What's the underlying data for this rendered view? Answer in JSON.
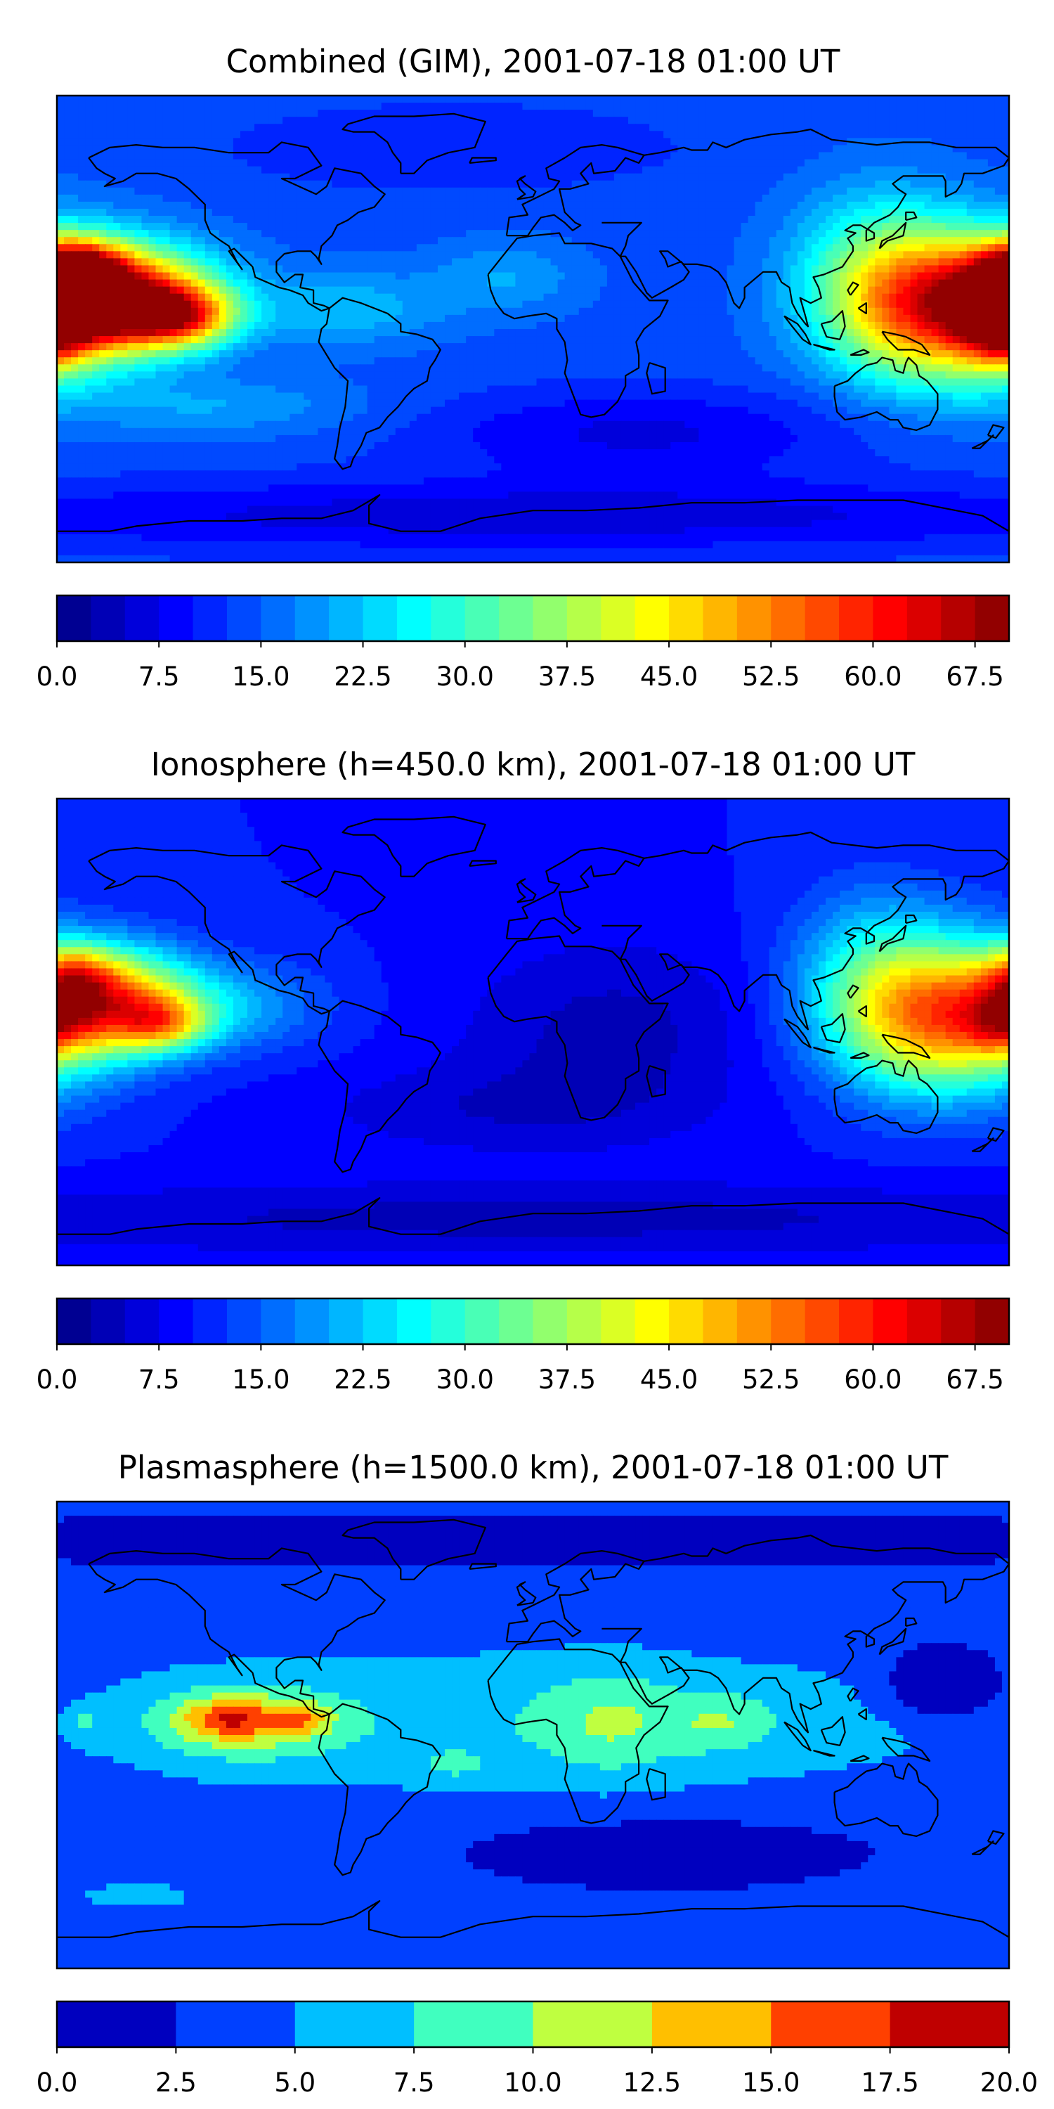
{
  "panels": [
    {
      "title": "Combined (GIM), 2001-07-18 01:00 UT",
      "colorbar": {
        "vmin": 0.0,
        "vmax": 70.0,
        "levels": 28,
        "tick_labels": [
          "0.0",
          "7.5",
          "15.0",
          "22.5",
          "30.0",
          "37.5",
          "45.0",
          "52.5",
          "60.0",
          "67.5"
        ],
        "tick_values": [
          0.0,
          7.5,
          15.0,
          22.5,
          30.0,
          37.5,
          45.0,
          52.5,
          60.0,
          67.5
        ]
      },
      "field": {
        "background": 14,
        "blobs": [
          {
            "lon": -155,
            "lat": 12,
            "amp": 44,
            "sx": 25,
            "sy": 14
          },
          {
            "lon": -173,
            "lat": 22,
            "amp": 30,
            "sx": 12,
            "sy": 8
          },
          {
            "lon": -135,
            "lat": 5,
            "amp": 32,
            "sx": 15,
            "sy": 8
          },
          {
            "lon": -175,
            "lat": 10,
            "amp": 20,
            "sx": 18,
            "sy": 14
          },
          {
            "lon": 155,
            "lat": 8,
            "amp": 42,
            "sx": 28,
            "sy": 20
          },
          {
            "lon": 178,
            "lat": 0,
            "amp": 18,
            "sx": 10,
            "sy": 10
          },
          {
            "lon": 130,
            "lat": 25,
            "amp": 12,
            "sx": 22,
            "sy": 22
          },
          {
            "lon": -70,
            "lat": 8,
            "amp": 8,
            "sx": 25,
            "sy": 10
          },
          {
            "lon": -10,
            "lat": 20,
            "amp": 6,
            "sx": 20,
            "sy": 10
          },
          {
            "lon": -120,
            "lat": -30,
            "amp": 6,
            "sx": 40,
            "sy": 8
          },
          {
            "lon": 40,
            "lat": -40,
            "amp": -7,
            "sx": 60,
            "sy": 12
          },
          {
            "lon": 0,
            "lat": -72,
            "amp": -8,
            "sx": 180,
            "sy": 10
          },
          {
            "lon": -30,
            "lat": 70,
            "amp": -4,
            "sx": 60,
            "sy": 12
          }
        ]
      }
    },
    {
      "title": "Ionosphere  (h=450.0 km), 2001-07-18 01:00 UT",
      "colorbar": {
        "vmin": 0.0,
        "vmax": 70.0,
        "levels": 28,
        "tick_labels": [
          "0.0",
          "7.5",
          "15.0",
          "22.5",
          "30.0",
          "37.5",
          "45.0",
          "52.5",
          "60.0",
          "67.5"
        ],
        "tick_values": [
          0.0,
          7.5,
          15.0,
          22.5,
          30.0,
          37.5,
          45.0,
          52.5,
          60.0,
          67.5
        ]
      },
      "field": {
        "background": 10,
        "blobs": [
          {
            "lon": -160,
            "lat": 12,
            "amp": 38,
            "sx": 22,
            "sy": 14
          },
          {
            "lon": -173,
            "lat": 22,
            "amp": 16,
            "sx": 10,
            "sy": 8
          },
          {
            "lon": -140,
            "lat": 3,
            "amp": 20,
            "sx": 12,
            "sy": 7
          },
          {
            "lon": -115,
            "lat": 10,
            "amp": 10,
            "sx": 25,
            "sy": 12
          },
          {
            "lon": 155,
            "lat": 5,
            "amp": 40,
            "sx": 28,
            "sy": 20
          },
          {
            "lon": 178,
            "lat": 3,
            "amp": 12,
            "sx": 10,
            "sy": 8
          },
          {
            "lon": 130,
            "lat": 25,
            "amp": 12,
            "sx": 22,
            "sy": 22
          },
          {
            "lon": 30,
            "lat": 0,
            "amp": -6,
            "sx": 40,
            "sy": 25
          },
          {
            "lon": -20,
            "lat": -30,
            "amp": -4,
            "sx": 50,
            "sy": 12
          },
          {
            "lon": 0,
            "lat": -72,
            "amp": -6,
            "sx": 180,
            "sy": 10
          }
        ]
      }
    },
    {
      "title": "Plasmasphere (h=1500.0 km), 2001-07-18 01:00 UT",
      "colorbar": {
        "vmin": 0.0,
        "vmax": 20.0,
        "levels": 8,
        "tick_labels": [
          "0.0",
          "2.5",
          "5.0",
          "7.5",
          "10.0",
          "12.5",
          "15.0",
          "17.5",
          "20.0"
        ],
        "tick_values": [
          0.0,
          2.5,
          5.0,
          7.5,
          10.0,
          12.5,
          15.0,
          17.5,
          20.0
        ]
      },
      "field": {
        "background": 3.5,
        "blobs": [
          {
            "lon": 0,
            "lat": 5,
            "amp": 3.6,
            "sx": 120,
            "sy": 20
          },
          {
            "lon": -110,
            "lat": 5,
            "amp": 6.5,
            "sx": 25,
            "sy": 10
          },
          {
            "lon": -115,
            "lat": 6,
            "amp": 6,
            "sx": 12,
            "sy": 5
          },
          {
            "lon": -88,
            "lat": 6,
            "amp": 5,
            "sx": 8,
            "sy": 4
          },
          {
            "lon": 30,
            "lat": 5,
            "amp": 3.5,
            "sx": 18,
            "sy": 14
          },
          {
            "lon": 72,
            "lat": 5,
            "amp": 3.5,
            "sx": 14,
            "sy": 8
          },
          {
            "lon": -30,
            "lat": -12,
            "amp": 2.5,
            "sx": 10,
            "sy": 4
          },
          {
            "lon": -170,
            "lat": 5,
            "amp": 3,
            "sx": 5,
            "sy": 5
          },
          {
            "lon": 155,
            "lat": 20,
            "amp": -6.5,
            "sx": 14,
            "sy": 9
          },
          {
            "lon": 50,
            "lat": -45,
            "amp": -3,
            "sx": 55,
            "sy": 10
          },
          {
            "lon": 0,
            "lat": 75,
            "amp": -2.5,
            "sx": 200,
            "sy": 8
          },
          {
            "lon": -150,
            "lat": -62,
            "amp": 2,
            "sx": 25,
            "sy": 6
          }
        ]
      }
    }
  ]
}
